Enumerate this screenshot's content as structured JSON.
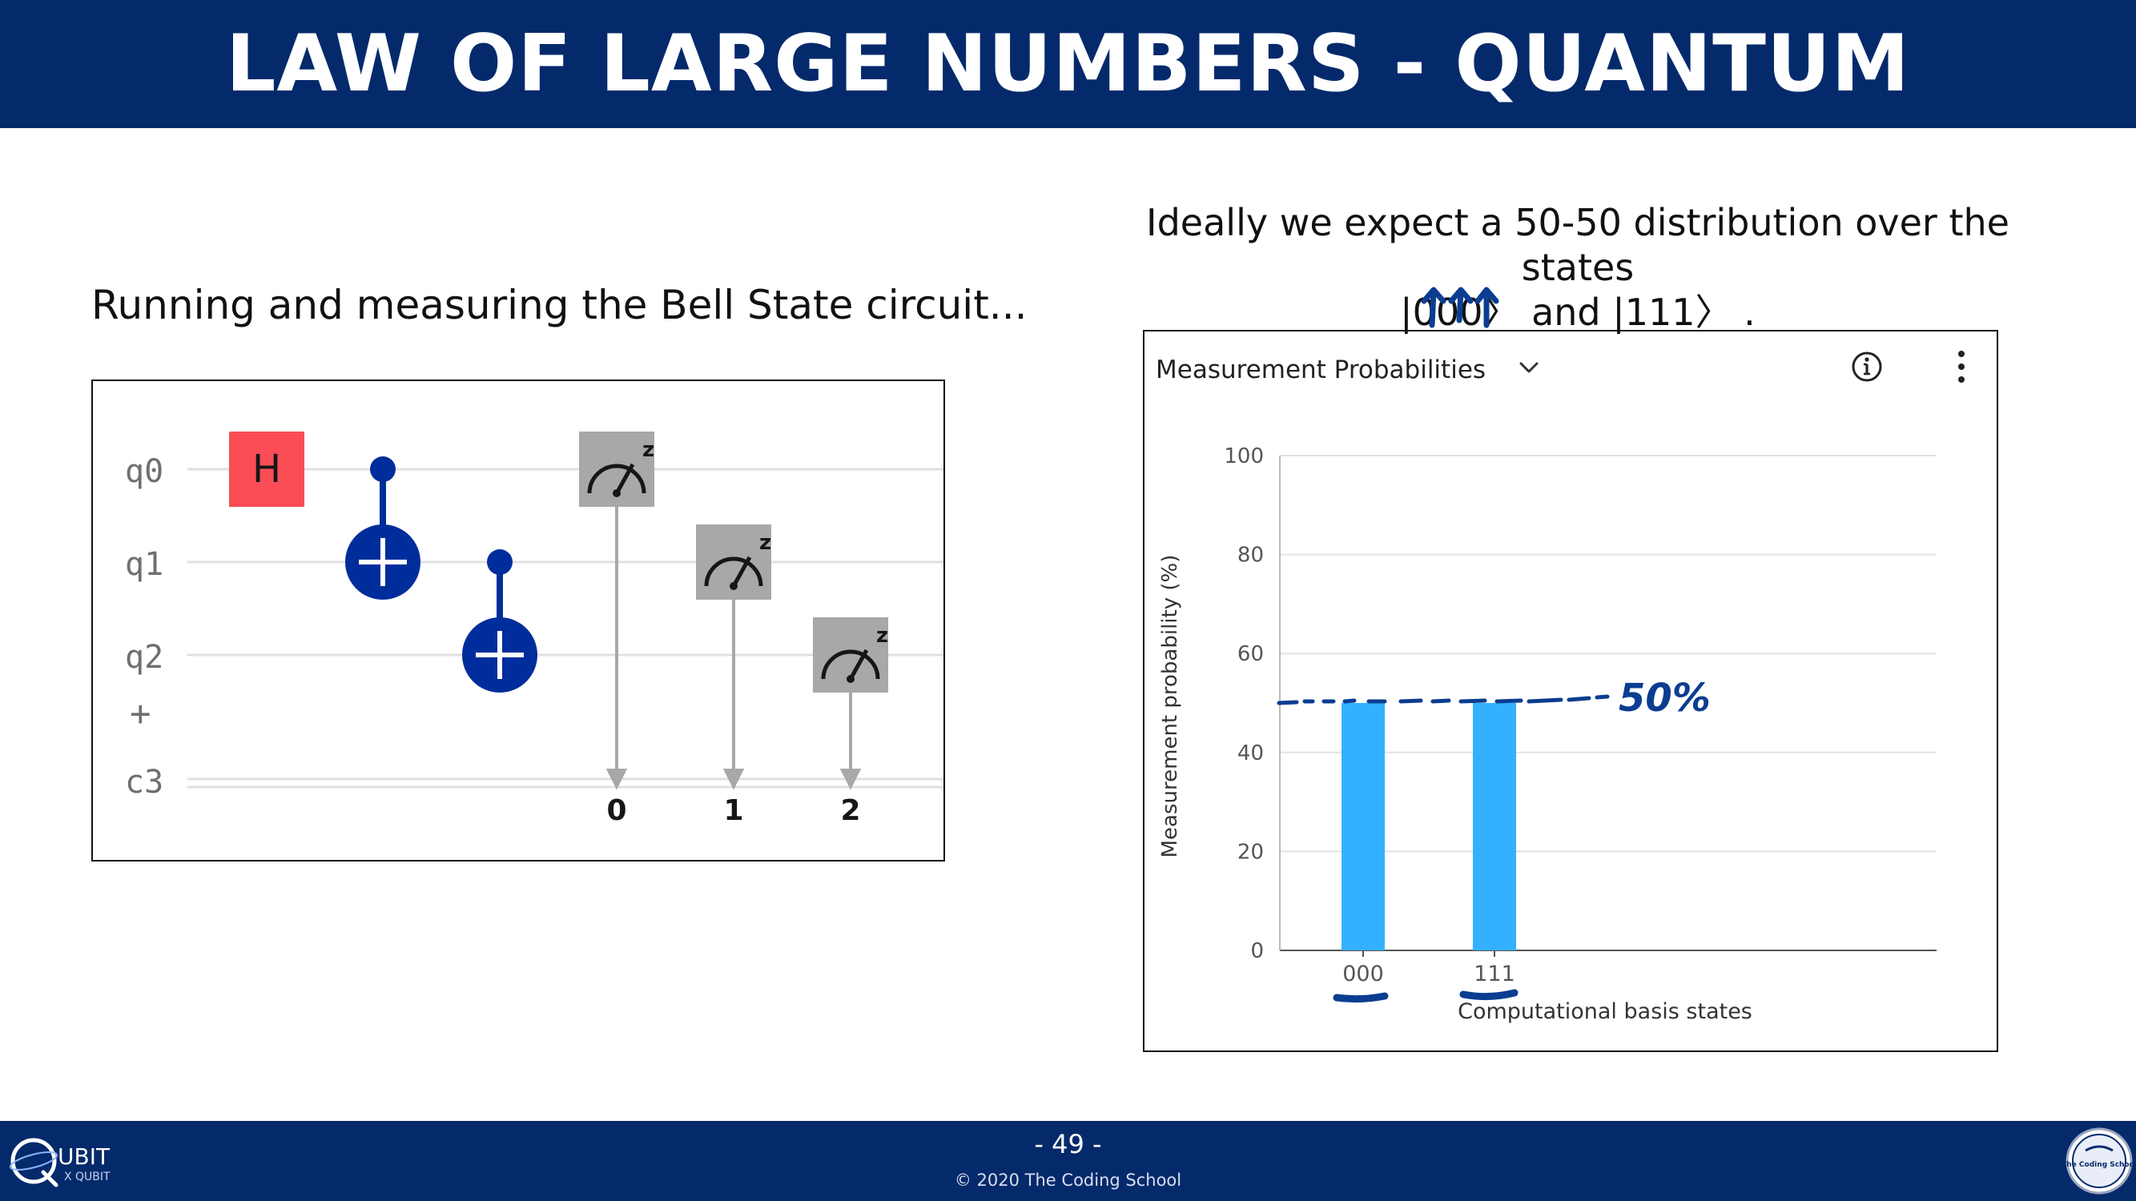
{
  "header": {
    "title": "LAW OF LARGE NUMBERS - QUANTUM"
  },
  "left": {
    "caption": "Running and measuring the Bell State circuit..."
  },
  "right": {
    "caption_line1": "Ideally we expect a 50-50 distribution over the states",
    "caption_line2": "|000〉 and |111〉 ."
  },
  "circuit": {
    "wires": [
      "q0",
      "q1",
      "q2",
      "c3"
    ],
    "plus_symbol": "+",
    "h_gate_label": "H",
    "measure_label": "z",
    "classical_bits": [
      "0",
      "1",
      "2"
    ]
  },
  "chart_panel": {
    "title": "Measurement Probabilities",
    "icons": [
      "chevron-down-icon",
      "info-icon",
      "more-vertical-icon"
    ]
  },
  "chart_data": {
    "type": "bar",
    "categories": [
      "000",
      "111"
    ],
    "values": [
      50,
      50
    ],
    "xlabel": "Computational basis states",
    "ylabel": "Measurement probability (%)",
    "ylim": [
      0,
      100
    ],
    "yticks": [
      0,
      20,
      40,
      60,
      80,
      100
    ],
    "grid": true,
    "bar_color": "#33b1ff",
    "annotation": "50%",
    "annotation_color": "#0b3d91"
  },
  "footer": {
    "page_number": "- 49 -",
    "copyright": "© 2020 The Coding School",
    "logo_left_text": "UBIT",
    "logo_left_sub": "X QUBIT",
    "logo_right_text": "The Coding School"
  },
  "colors": {
    "brand_navy": "#052a6b",
    "h_gate": "#fa4d56",
    "cnot": "#002d9c",
    "measure_box": "#a8a8a8"
  }
}
